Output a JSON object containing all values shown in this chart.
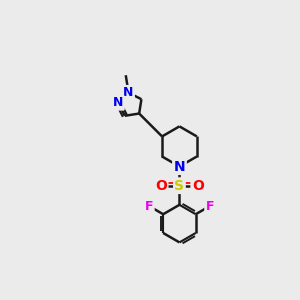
{
  "background_color": "#ebebeb",
  "bond_color": "#1a1a1a",
  "bond_width": 1.8,
  "atom_colors": {
    "N": "#0000ee",
    "O": "#ff0000",
    "S": "#cccc00",
    "F": "#ee00ee",
    "C": "#1a1a1a"
  },
  "figsize": [
    3.0,
    3.0
  ],
  "dpi": 100
}
